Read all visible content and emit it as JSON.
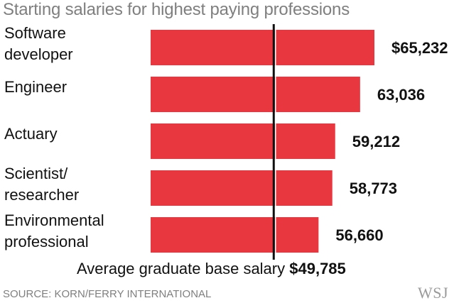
{
  "title": "Starting salaries for highest paying professions",
  "chart_data": {
    "type": "bar",
    "orientation": "horizontal",
    "categories": [
      [
        "Software",
        "developer"
      ],
      [
        "Engineer"
      ],
      [
        "Actuary"
      ],
      [
        "Scientist/",
        "researcher"
      ],
      [
        "Environmental",
        "professional"
      ]
    ],
    "values": [
      65232,
      63036,
      59212,
      58773,
      56660
    ],
    "value_labels": [
      "$65,232",
      "63,036",
      "59,212",
      "58,773",
      "56,660"
    ],
    "bar_color": "#e8373f",
    "reference_line": {
      "value": 49785,
      "label": "Average graduate base salary",
      "value_label": "$49,785",
      "color": "#111111"
    },
    "xlim": [
      30900,
      65232
    ],
    "grid": false,
    "axes_visible": false
  },
  "source": "SOURCE: KORN/FERRY INTERNATIONAL",
  "logo": "WSJ"
}
